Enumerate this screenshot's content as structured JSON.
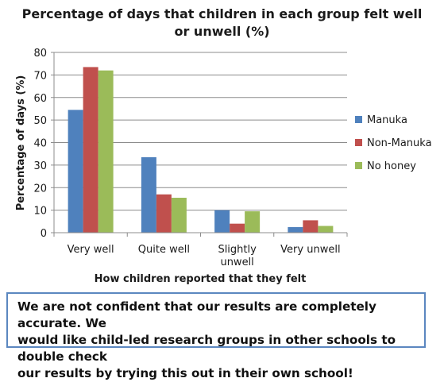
{
  "chart_data": {
    "type": "bar",
    "title_lines": [
      "Percentage of days that children in each group felt well",
      "or unwell (%)"
    ],
    "xlabel": "How children reported that they felt",
    "ylabel": "Percentage of days (%)",
    "categories": [
      [
        "Very well"
      ],
      [
        "Quite well"
      ],
      [
        "Slightly",
        "unwell"
      ],
      [
        "Very unwell"
      ]
    ],
    "series": [
      {
        "name": "Manuka",
        "color": "#4f81bd",
        "values": [
          54.5,
          33.5,
          10,
          2.5
        ]
      },
      {
        "name": "Non-Manuka",
        "color": "#c0504d",
        "values": [
          73.5,
          17,
          4,
          5.5
        ]
      },
      {
        "name": "No honey",
        "color": "#9bbb59",
        "values": [
          72,
          15.5,
          9.5,
          3
        ]
      }
    ],
    "ylim": [
      0,
      80
    ],
    "yticks": [
      0,
      10,
      20,
      30,
      40,
      50,
      60,
      70,
      80
    ],
    "grid": true,
    "legend_position": "right"
  },
  "note": {
    "lines": [
      "We are not confident that our results are completely accurate. We",
      "would like child-led research groups in other schools to double check",
      "our results by trying this out in their own school!"
    ]
  }
}
